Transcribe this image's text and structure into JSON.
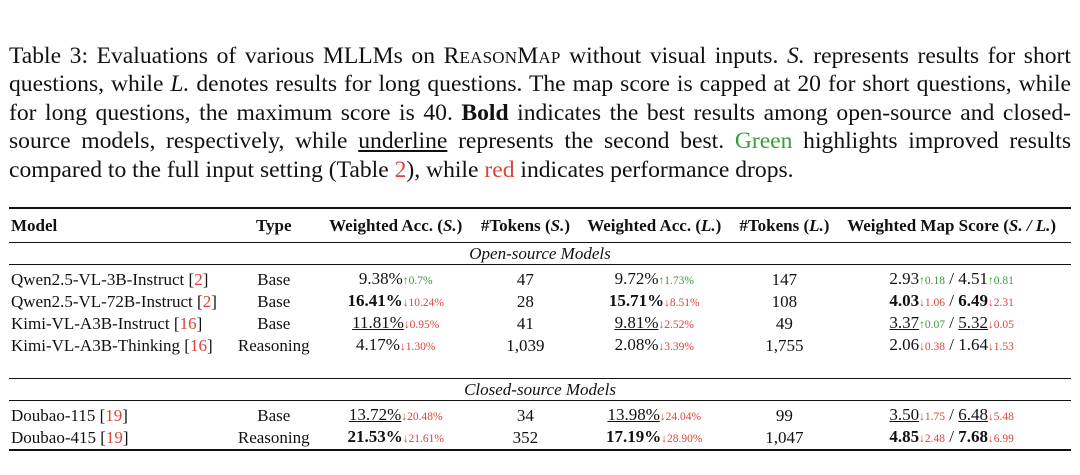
{
  "caption": {
    "p1": "Table 3: Evaluations of various MLLMs on ",
    "bench": "ReasonMap",
    "p2": " without visual inputs. ",
    "s_sym": "S.",
    "p3": " represents results for short questions, while ",
    "l_sym": "L.",
    "p4": " denotes results for long questions. The map score is capped at 20 for short questions, while for long questions, the maximum score is 40. ",
    "bold_word": "Bold",
    "p5": " indicates the best results among open-source and closed-source models, respectively, while ",
    "underline_word": "underline",
    "p6": " represents the second best. ",
    "green_word": "Green",
    "p7": " highlights improved results compared to the full input setting (Table ",
    "table_ref": "2",
    "p8": "), while ",
    "red_word": "red",
    "p9": " indicates performance drops."
  },
  "colors": {
    "green": "#3a9b3a",
    "red": "#d9453b"
  },
  "headers": {
    "model": "Model",
    "type": "Type",
    "wacc": "Weighted Acc.",
    "s": "S.",
    "l": "L.",
    "tokens": "#Tokens",
    "wms": "Weighted Map Score",
    "sl": "S. / L."
  },
  "groups": {
    "open": "Open-source Models",
    "closed": "Closed-source Models"
  },
  "rows": {
    "r1": {
      "model": "Qwen2.5-VL-3B-Instruct",
      "ref": "2",
      "type": "Base",
      "acc_s": "9.38%",
      "acc_s_delta": "↑0.7%",
      "tok_s": "47",
      "acc_l": "9.72%",
      "acc_l_delta": "↑1.73%",
      "tok_l": "147",
      "ms_s": "2.93",
      "ms_s_delta": "↑0.18",
      "ms_l": "4.51",
      "ms_l_delta": "↑0.81"
    },
    "r2": {
      "model": "Qwen2.5-VL-72B-Instruct",
      "ref": "2",
      "type": "Base",
      "acc_s": "16.41%",
      "acc_s_delta": "↓10.24%",
      "tok_s": "28",
      "acc_l": "15.71%",
      "acc_l_delta": "↓8.51%",
      "tok_l": "108",
      "ms_s": "4.03",
      "ms_s_delta": "↓1.06",
      "ms_l": "6.49",
      "ms_l_delta": "↓2.31"
    },
    "r3": {
      "model": "Kimi-VL-A3B-Instruct",
      "ref": "16",
      "type": "Base",
      "acc_s": "11.81%",
      "acc_s_delta": "↓0.95%",
      "tok_s": "41",
      "acc_l": "9.81%",
      "acc_l_delta": "↓2.52%",
      "tok_l": "49",
      "ms_s": "3.37",
      "ms_s_delta": "↑0.07",
      "ms_l": "5.32",
      "ms_l_delta": "↓0.05"
    },
    "r4": {
      "model": "Kimi-VL-A3B-Thinking",
      "ref": "16",
      "type": "Reasoning",
      "acc_s": "4.17%",
      "acc_s_delta": "↓1.30%",
      "tok_s": "1,039",
      "acc_l": "2.08%",
      "acc_l_delta": "↓3.39%",
      "tok_l": "1,755",
      "ms_s": "2.06",
      "ms_s_delta": "↓0.38",
      "ms_l": "1.64",
      "ms_l_delta": "↓1.53"
    },
    "r5": {
      "model": "Doubao-115",
      "ref": "19",
      "type": "Base",
      "acc_s": "13.72%",
      "acc_s_delta": "↓20.48%",
      "tok_s": "34",
      "acc_l": "13.98%",
      "acc_l_delta": "↓24.04%",
      "tok_l": "99",
      "ms_s": "3.50",
      "ms_s_delta": "↓1.75",
      "ms_l": "6.48",
      "ms_l_delta": "↓5.48"
    },
    "r6": {
      "model": "Doubao-415",
      "ref": "19",
      "type": "Reasoning",
      "acc_s": "21.53%",
      "acc_s_delta": "↓21.61%",
      "tok_s": "352",
      "acc_l": "17.19%",
      "acc_l_delta": "↓28.90%",
      "tok_l": "1,047",
      "ms_s": "4.85",
      "ms_s_delta": "↓2.48",
      "ms_l": "7.68",
      "ms_l_delta": "↓6.99"
    }
  }
}
